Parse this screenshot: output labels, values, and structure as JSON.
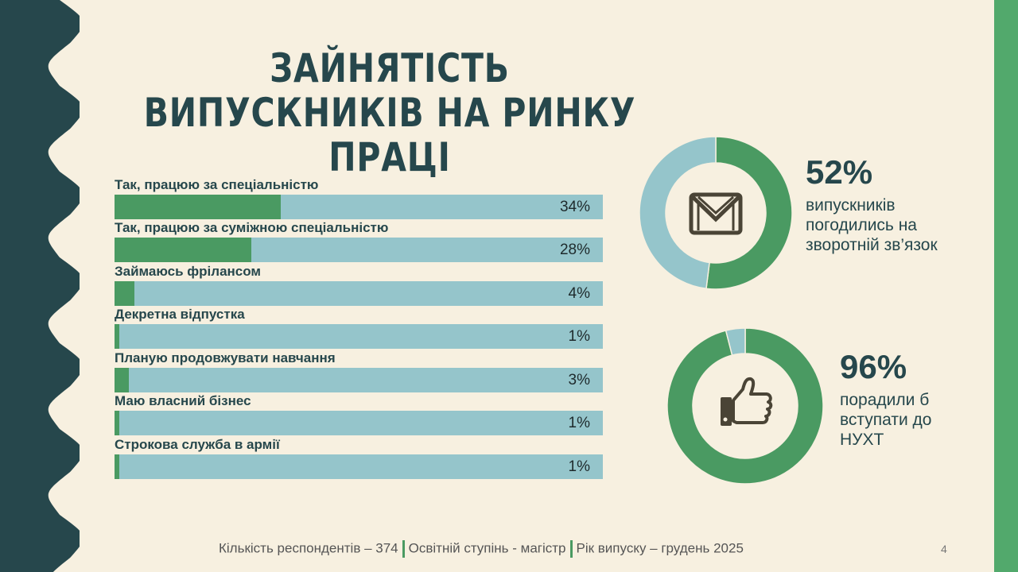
{
  "title": "ЗАЙНЯТІСТЬ ВИПУСКНИКІВ НА РИНКУ ПРАЦІ",
  "colors": {
    "primary": "#26474c",
    "green": "#4a9a62",
    "light": "#95c5cb",
    "background": "#f7f0e0",
    "accent_bar": "#52a96c"
  },
  "chart_data": [
    {
      "type": "bar",
      "orientation": "horizontal",
      "xlim": [
        0,
        100
      ],
      "unit": "%",
      "categories": [
        "Так, працюю за спеціальністю",
        "Так, працюю за суміжною спеціальністю",
        "Займаюсь фрілансом",
        "Декретна відпустка",
        "Планую продовжувати навчання",
        "Маю власний бізнес",
        "Строкова служба в армії"
      ],
      "values": [
        34,
        28,
        4,
        1,
        3,
        1,
        1
      ],
      "labels": [
        "34%",
        "28%",
        "4%",
        "1%",
        "3%",
        "1%",
        "1%"
      ]
    },
    {
      "type": "pie",
      "variant": "donut",
      "values": [
        52,
        48
      ],
      "label": "52%",
      "description": "випускників погодились на зворотній зв’язок",
      "icon": "envelope-icon"
    },
    {
      "type": "pie",
      "variant": "donut",
      "values": [
        96,
        4
      ],
      "label": "96%",
      "description": "порадили б вступати до НУХТ",
      "icon": "thumbs-up-icon"
    }
  ],
  "footer": {
    "respondents": "Кількість респондентів – 374",
    "degree": "Освітній ступінь - магістр",
    "year": "Рік випуску – грудень 2025"
  },
  "page_number": "4"
}
